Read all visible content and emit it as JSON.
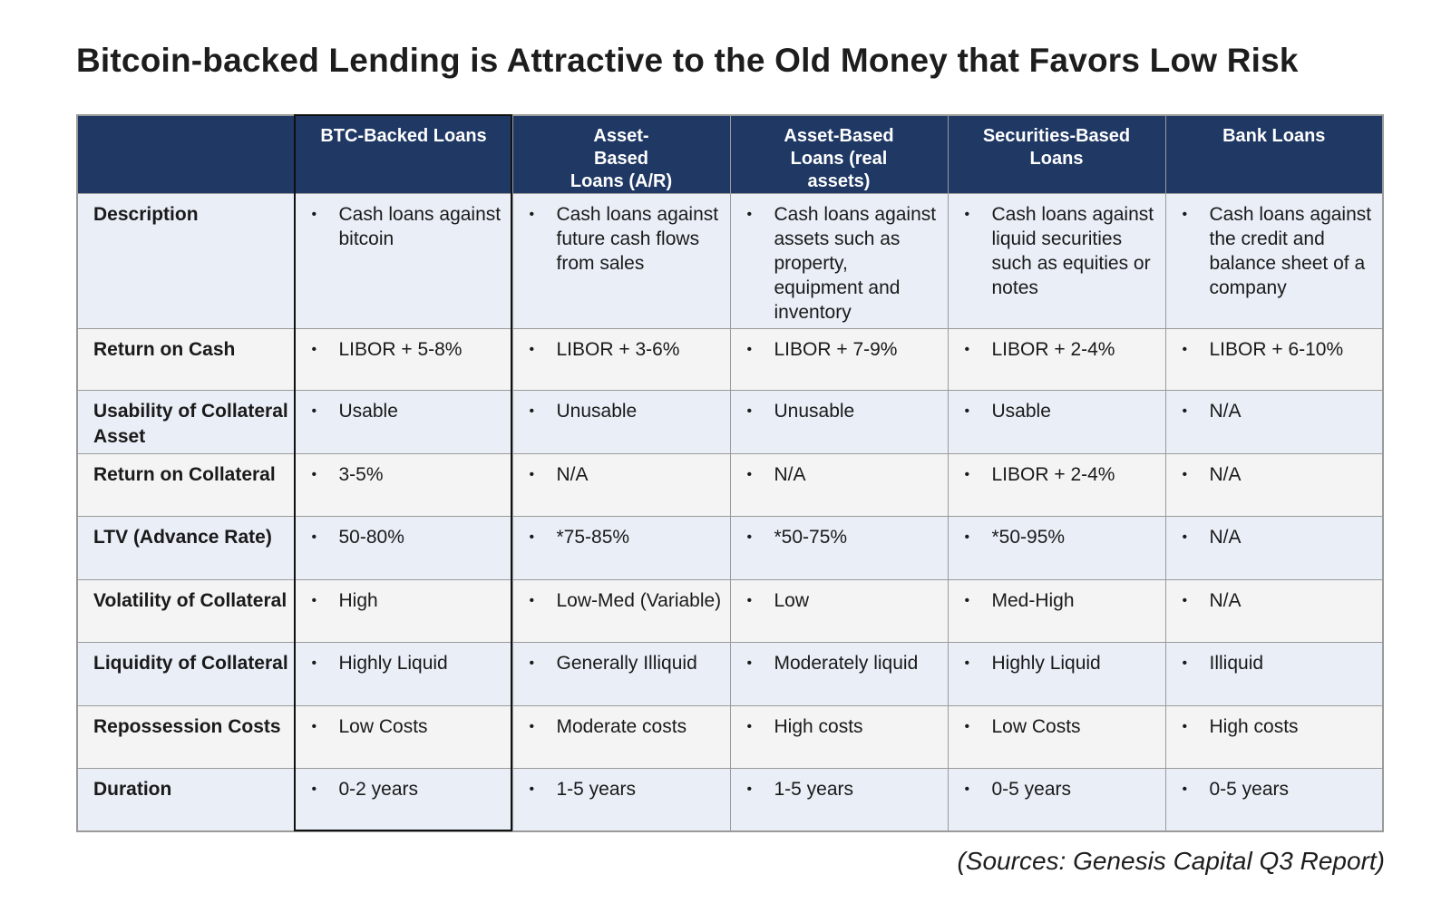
{
  "title": "Bitcoin-backed Lending is Attractive to the Old Money that Favors Low Risk",
  "source": "(Sources: Genesis Capital Q3 Report)",
  "colors": {
    "header_bg": "#1f3864",
    "row_alt_bg": "#e9eef7",
    "row_plain_bg": "#f4f4f4",
    "highlight_border": "#111111"
  },
  "table": {
    "columns": [
      "BTC-Backed Loans",
      "Asset-Based Loans (A/R)",
      "Asset-Based Loans (real assets)",
      "Securities-Based Loans",
      "Bank Loans"
    ],
    "rows": [
      {
        "label": "Description",
        "cells": [
          "Cash loans against bitcoin",
          "Cash loans against future cash flows from sales",
          "Cash loans against assets such as property, equipment and inventory",
          "Cash loans against liquid securities such as equities or notes",
          "Cash loans against the credit and balance sheet of a company"
        ]
      },
      {
        "label": "Return on Cash",
        "cells": [
          "LIBOR + 5-8%",
          "LIBOR + 3-6%",
          "LIBOR + 7-9%",
          "LIBOR + 2-4%",
          "LIBOR + 6-10%"
        ]
      },
      {
        "label": "Usability of Collateral Asset",
        "cells": [
          "Usable",
          "Unusable",
          "Unusable",
          "Usable",
          "N/A"
        ]
      },
      {
        "label": "Return on Collateral",
        "cells": [
          "3-5%",
          "N/A",
          "N/A",
          "LIBOR + 2-4%",
          "N/A"
        ]
      },
      {
        "label": "LTV (Advance Rate)",
        "cells": [
          "50-80%",
          "*75-85%",
          "*50-75%",
          "*50-95%",
          "N/A"
        ]
      },
      {
        "label": "Volatility of Collateral",
        "cells": [
          "High",
          "Low-Med (Variable)",
          "Low",
          "Med-High",
          "N/A"
        ]
      },
      {
        "label": "Liquidity of Collateral",
        "cells": [
          "Highly Liquid",
          "Generally Illiquid",
          "Moderately liquid",
          "Highly Liquid",
          "Illiquid"
        ]
      },
      {
        "label": "Repossession Costs",
        "cells": [
          "Low Costs",
          "Moderate costs",
          "High costs",
          "Low Costs",
          "High costs"
        ]
      },
      {
        "label": "Duration",
        "cells": [
          "0-2 years",
          "1-5 years",
          "1-5 years",
          "0-5 years",
          "0-5 years"
        ]
      }
    ]
  }
}
